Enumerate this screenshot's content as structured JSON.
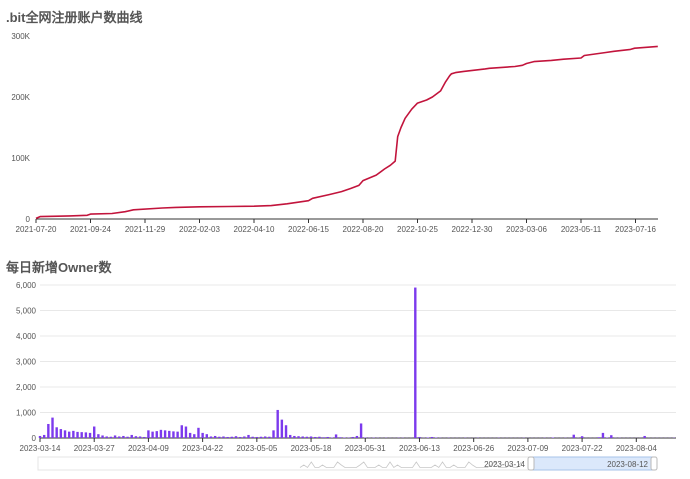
{
  "colors": {
    "line": "#c2143c",
    "bar": "#7c3aed",
    "axis": "#333333",
    "grid": "#e8e8e8",
    "zoom_fill": "#dbe8fb",
    "zoom_border": "#a7c3ea",
    "zoom_handle": "#b9b9b9"
  },
  "chart_data": [
    {
      "type": "line",
      "title": ".bit全网注册账户数曲线",
      "xlabel": "",
      "ylabel": "",
      "ylim": [
        0,
        300000
      ],
      "y_ticks": [
        0,
        100000,
        200000,
        300000
      ],
      "y_tick_labels": [
        "0",
        "100K",
        "200K",
        "300K"
      ],
      "x_tick_labels": [
        "2021-07-20",
        "2021-09-24",
        "2021-11-29",
        "2022-02-03",
        "2022-04-10",
        "2022-06-15",
        "2022-08-20",
        "2022-10-25",
        "2022-12-30",
        "2023-03-06",
        "2023-05-11",
        "2023-07-16"
      ],
      "grid": false,
      "series": [
        {
          "x": [
            "2021-07-20",
            "2021-07-25",
            "2021-08-30",
            "2021-09-20",
            "2021-09-24",
            "2021-10-20",
            "2021-11-05",
            "2021-11-15",
            "2021-12-20",
            "2022-01-05",
            "2022-02-03",
            "2022-03-10",
            "2022-04-10",
            "2022-05-01",
            "2022-05-20",
            "2022-06-15",
            "2022-06-20",
            "2022-07-10",
            "2022-07-25",
            "2022-08-05",
            "2022-08-15",
            "2022-08-20",
            "2022-09-05",
            "2022-09-15",
            "2022-09-22",
            "2022-09-28",
            "2022-10-01",
            "2022-10-05",
            "2022-10-10",
            "2022-10-18",
            "2022-10-25",
            "2022-11-05",
            "2022-11-12",
            "2022-11-22",
            "2022-11-28",
            "2022-12-03",
            "2022-12-05",
            "2022-12-10",
            "2022-12-20",
            "2023-01-15",
            "2023-01-20",
            "2023-02-20",
            "2023-03-01",
            "2023-03-06",
            "2023-03-15",
            "2023-04-05",
            "2023-04-20",
            "2023-05-11",
            "2023-05-15",
            "2023-06-10",
            "2023-06-20",
            "2023-07-10",
            "2023-07-15",
            "2023-08-12"
          ],
          "y": [
            1000,
            4000,
            5000,
            6000,
            8000,
            9000,
            12000,
            15000,
            18000,
            19000,
            20000,
            20500,
            21000,
            22000,
            25000,
            30000,
            34000,
            40000,
            45000,
            50000,
            55000,
            63000,
            72000,
            82000,
            88000,
            95000,
            135000,
            150000,
            165000,
            180000,
            190000,
            195000,
            200000,
            210000,
            225000,
            235000,
            238000,
            240000,
            242000,
            246000,
            247000,
            250000,
            252000,
            255000,
            258000,
            260000,
            262000,
            264000,
            268000,
            273000,
            275000,
            278000,
            280000,
            283000
          ]
        }
      ]
    },
    {
      "type": "bar",
      "title": "每日新增Owner数",
      "xlabel": "",
      "ylabel": "",
      "ylim": [
        0,
        6000
      ],
      "y_ticks": [
        0,
        1000,
        2000,
        3000,
        4000,
        5000,
        6000
      ],
      "y_tick_labels": [
        "0",
        "1,000",
        "2,000",
        "3,000",
        "4,000",
        "5,000",
        "6,000"
      ],
      "x_tick_labels": [
        "2023-03-14",
        "2023-03-27",
        "2023-04-09",
        "2023-04-22",
        "2023-05-05",
        "2023-05-18",
        "2023-05-31",
        "2023-06-13",
        "2023-06-26",
        "2023-07-09",
        "2023-07-22",
        "2023-08-04"
      ],
      "grid": true,
      "start_date": "2023-03-14",
      "values": [
        80,
        120,
        550,
        800,
        420,
        350,
        300,
        250,
        280,
        240,
        230,
        220,
        200,
        450,
        150,
        100,
        60,
        50,
        100,
        60,
        80,
        50,
        120,
        70,
        60,
        40,
        300,
        250,
        270,
        320,
        300,
        280,
        260,
        250,
        500,
        450,
        200,
        150,
        400,
        200,
        150,
        60,
        80,
        50,
        60,
        40,
        50,
        70,
        40,
        60,
        120,
        50,
        40,
        50,
        60,
        50,
        300,
        1100,
        720,
        500,
        120,
        80,
        70,
        60,
        50,
        60,
        40,
        50,
        30,
        40,
        20,
        140,
        30,
        20,
        15,
        40,
        80,
        570,
        20,
        10,
        15,
        10,
        5,
        10,
        5,
        5,
        10,
        10,
        5,
        5,
        5900,
        40,
        10,
        20,
        40,
        20,
        10,
        5,
        10,
        5,
        5,
        5,
        10,
        5,
        5,
        10,
        5,
        5,
        5,
        5,
        10,
        5,
        5,
        5,
        5,
        5,
        10,
        5,
        5,
        5,
        5,
        10,
        5,
        20,
        5,
        5,
        10,
        5,
        130,
        10,
        70,
        5,
        5,
        5,
        30,
        200,
        20,
        110,
        10,
        10,
        5,
        5,
        5,
        5,
        5,
        80,
        5,
        5,
        5,
        5,
        5,
        5,
        10
      ]
    }
  ],
  "zoom": {
    "start_label": "2023-03-14",
    "end_label": "2023-08-12"
  }
}
